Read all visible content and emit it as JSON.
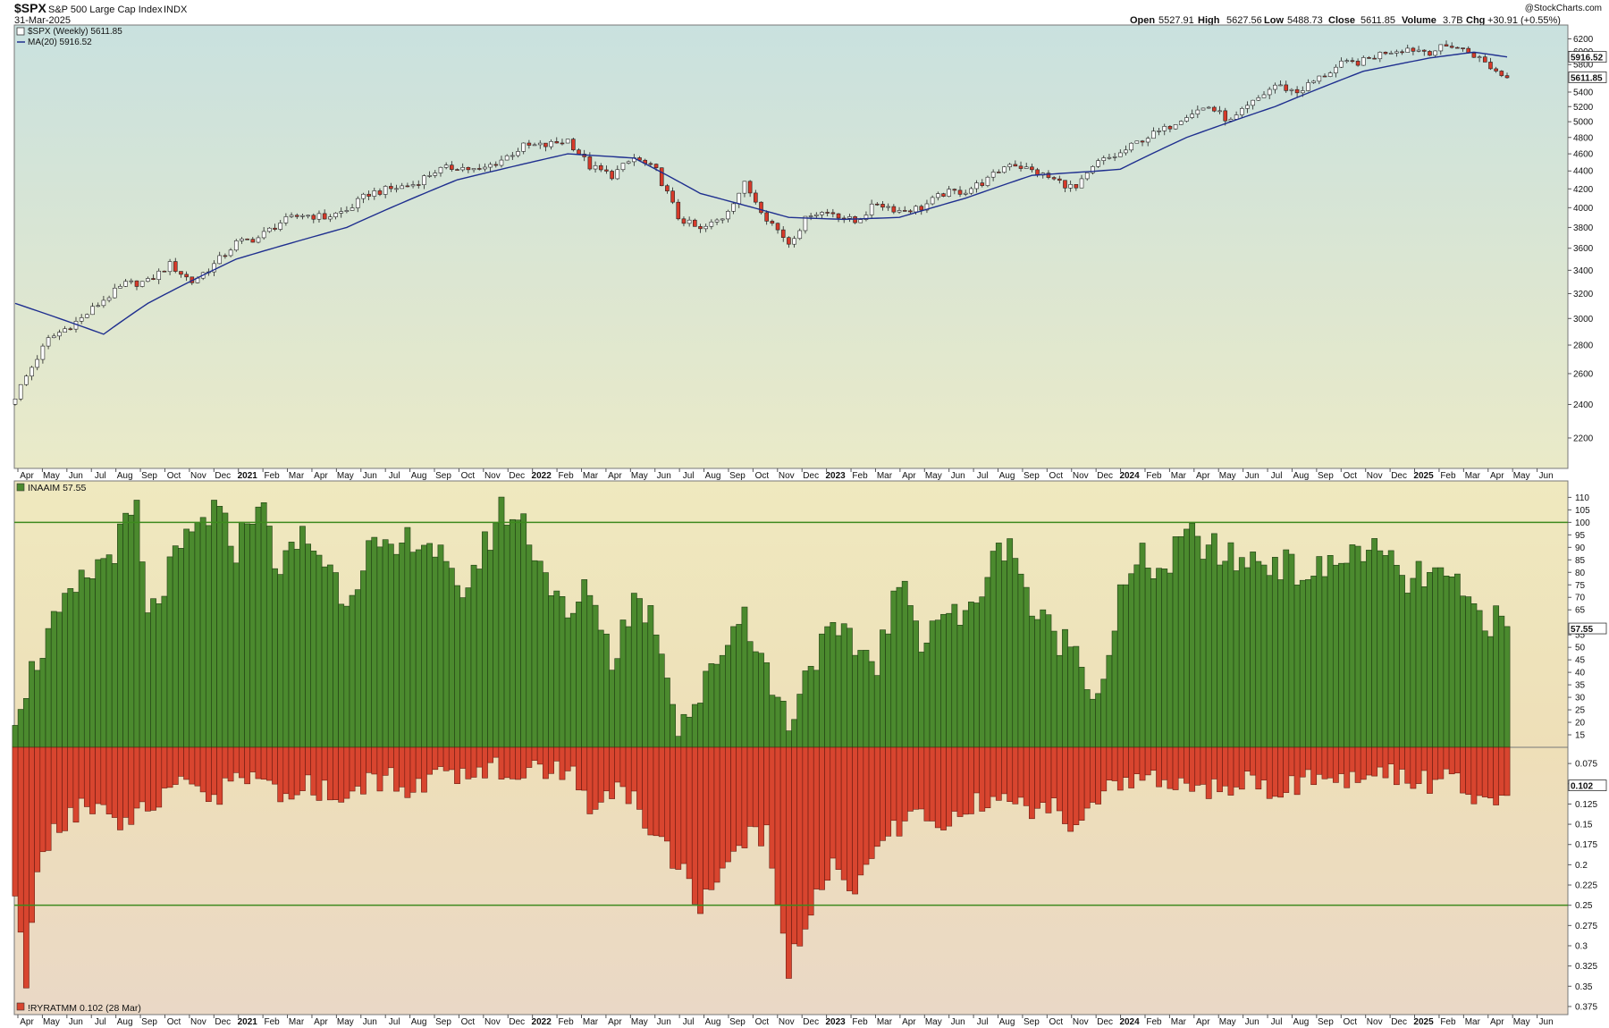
{
  "header": {
    "symbol": "$SPX",
    "name": "S&P 500 Large Cap Index",
    "exchange": "INDX",
    "date": "31-Mar-2025",
    "open_label": "Open",
    "open": "5527.91",
    "high_label": "High",
    "high": "5627.56",
    "low_label": "Low",
    "low": "5488.73",
    "close_label": "Close",
    "close": "5611.85",
    "volume_label": "Volume",
    "volume": "3.7B",
    "chg_label": "Chg",
    "chg": "+30.91 (+0.55%)",
    "watermark": "@StockCharts.com"
  },
  "colors": {
    "up": "#ffffff",
    "down": "#d63a2a",
    "ma": "#1f2f8f",
    "green_bar": "#4b8a2e",
    "red_bar": "#d8452f",
    "ref_line": "#3d8a1e"
  },
  "chart_data": [
    {
      "type": "candlestick",
      "title": "$SPX (Weekly) 5611.85",
      "legend": [
        "$SPX (Weekly) 5611.85",
        "MA(20) 5916.52"
      ],
      "y_ticks": [
        2200,
        2400,
        2600,
        2800,
        3000,
        3200,
        3400,
        3600,
        3800,
        4000,
        4200,
        4400,
        4600,
        4800,
        5000,
        5200,
        5400,
        5800,
        6000,
        6200
      ],
      "ylim": [
        2100,
        6250
      ],
      "last_value_label": "5611.85",
      "ma_value_label": "5916.52",
      "anchors": [
        [
          0,
          2450
        ],
        [
          6,
          2840
        ],
        [
          12,
          3000
        ],
        [
          16,
          3150
        ],
        [
          20,
          3280
        ],
        [
          24,
          3300
        ],
        [
          28,
          3450
        ],
        [
          32,
          3300
        ],
        [
          36,
          3450
        ],
        [
          40,
          3650
        ],
        [
          44,
          3700
        ],
        [
          48,
          3850
        ],
        [
          52,
          3930
        ],
        [
          56,
          3900
        ],
        [
          60,
          3970
        ],
        [
          64,
          4150
        ],
        [
          68,
          4200
        ],
        [
          72,
          4250
        ],
        [
          76,
          4400
        ],
        [
          80,
          4450
        ],
        [
          84,
          4400
        ],
        [
          88,
          4530
        ],
        [
          92,
          4690
        ],
        [
          96,
          4700
        ],
        [
          100,
          4770
        ],
        [
          104,
          4450
        ],
        [
          108,
          4350
        ],
        [
          112,
          4550
        ],
        [
          116,
          4400
        ],
        [
          120,
          3900
        ],
        [
          124,
          3770
        ],
        [
          128,
          3900
        ],
        [
          132,
          4250
        ],
        [
          136,
          3900
        ],
        [
          140,
          3650
        ],
        [
          144,
          3950
        ],
        [
          148,
          3950
        ],
        [
          152,
          3850
        ],
        [
          156,
          4050
        ],
        [
          160,
          3970
        ],
        [
          164,
          4000
        ],
        [
          168,
          4150
        ],
        [
          172,
          4180
        ],
        [
          176,
          4300
        ],
        [
          180,
          4500
        ],
        [
          184,
          4400
        ],
        [
          188,
          4300
        ],
        [
          192,
          4200
        ],
        [
          196,
          4500
        ],
        [
          200,
          4600
        ],
        [
          204,
          4780
        ],
        [
          208,
          4900
        ],
        [
          212,
          5100
        ],
        [
          216,
          5200
        ],
        [
          220,
          5000
        ],
        [
          224,
          5250
        ],
        [
          228,
          5500
        ],
        [
          232,
          5400
        ],
        [
          236,
          5600
        ],
        [
          240,
          5800
        ],
        [
          244,
          5850
        ],
        [
          248,
          6000
        ],
        [
          252,
          6050
        ],
        [
          256,
          6000
        ],
        [
          260,
          6100
        ],
        [
          264,
          5950
        ],
        [
          268,
          5700
        ],
        [
          270,
          5612
        ]
      ],
      "ma20_anchors": [
        [
          0,
          3120
        ],
        [
          16,
          2880
        ],
        [
          24,
          3120
        ],
        [
          40,
          3500
        ],
        [
          60,
          3800
        ],
        [
          80,
          4300
        ],
        [
          100,
          4600
        ],
        [
          112,
          4550
        ],
        [
          124,
          4150
        ],
        [
          140,
          3900
        ],
        [
          150,
          3880
        ],
        [
          160,
          3900
        ],
        [
          172,
          4100
        ],
        [
          184,
          4350
        ],
        [
          196,
          4400
        ],
        [
          200,
          4420
        ],
        [
          212,
          4800
        ],
        [
          228,
          5200
        ],
        [
          244,
          5700
        ],
        [
          256,
          5900
        ],
        [
          264,
          5990
        ],
        [
          270,
          5916
        ]
      ]
    },
    {
      "type": "bar",
      "title": "INAAIM 57.55",
      "legend": [
        "INAAIM 57.55"
      ],
      "y_ticks": [
        15,
        20,
        25,
        30,
        35,
        40,
        45,
        50,
        55,
        65,
        70,
        75,
        80,
        85,
        90,
        95,
        100,
        105,
        110
      ],
      "ylim": [
        10,
        113
      ],
      "reference_line": 100,
      "last_value_label": "57.55",
      "anchors": [
        [
          0,
          25
        ],
        [
          6,
          55
        ],
        [
          12,
          75
        ],
        [
          18,
          90
        ],
        [
          22,
          105
        ],
        [
          24,
          60
        ],
        [
          28,
          80
        ],
        [
          32,
          95
        ],
        [
          36,
          105
        ],
        [
          40,
          90
        ],
        [
          44,
          110
        ],
        [
          48,
          80
        ],
        [
          52,
          95
        ],
        [
          56,
          85
        ],
        [
          60,
          70
        ],
        [
          64,
          90
        ],
        [
          68,
          85
        ],
        [
          72,
          95
        ],
        [
          76,
          90
        ],
        [
          80,
          70
        ],
        [
          84,
          85
        ],
        [
          88,
          105
        ],
        [
          92,
          100
        ],
        [
          96,
          80
        ],
        [
          100,
          60
        ],
        [
          104,
          75
        ],
        [
          108,
          45
        ],
        [
          112,
          70
        ],
        [
          116,
          60
        ],
        [
          120,
          20
        ],
        [
          124,
          30
        ],
        [
          128,
          50
        ],
        [
          132,
          65
        ],
        [
          136,
          40
        ],
        [
          140,
          20
        ],
        [
          144,
          45
        ],
        [
          148,
          55
        ],
        [
          152,
          50
        ],
        [
          156,
          45
        ],
        [
          160,
          75
        ],
        [
          164,
          55
        ],
        [
          168,
          65
        ],
        [
          172,
          60
        ],
        [
          176,
          80
        ],
        [
          180,
          95
        ],
        [
          184,
          65
        ],
        [
          188,
          55
        ],
        [
          192,
          50
        ],
        [
          196,
          30
        ],
        [
          200,
          70
        ],
        [
          204,
          85
        ],
        [
          208,
          80
        ],
        [
          212,
          95
        ],
        [
          216,
          90
        ],
        [
          220,
          85
        ],
        [
          224,
          85
        ],
        [
          228,
          85
        ],
        [
          232,
          80
        ],
        [
          236,
          80
        ],
        [
          240,
          85
        ],
        [
          244,
          90
        ],
        [
          248,
          85
        ],
        [
          252,
          75
        ],
        [
          256,
          80
        ],
        [
          260,
          75
        ],
        [
          264,
          65
        ],
        [
          268,
          60
        ],
        [
          270,
          57.55
        ]
      ],
      "x_tick_labels": [
        "Apr",
        "May",
        "Jun",
        "Jul",
        "Aug",
        "Sep",
        "Oct",
        "Nov",
        "Dec",
        "2021",
        "Feb",
        "Mar",
        "Apr",
        "May",
        "Jun",
        "Jul",
        "Aug",
        "Sep",
        "Oct",
        "Nov",
        "Dec",
        "2022",
        "Feb",
        "Mar",
        "Apr",
        "May",
        "Jun",
        "Jul",
        "Aug",
        "Sep",
        "Oct",
        "Nov",
        "Dec",
        "2023",
        "Feb",
        "Mar",
        "Apr",
        "May",
        "Jun",
        "Jul",
        "Aug",
        "Sep",
        "Oct",
        "Nov",
        "Dec",
        "2024",
        "Feb",
        "Mar",
        "Apr",
        "May",
        "Jun",
        "Jul",
        "Aug",
        "Sep",
        "Oct",
        "Nov",
        "Dec",
        "2025",
        "Feb",
        "Mar",
        "Apr",
        "May",
        "Jun"
      ]
    },
    {
      "type": "bar",
      "title": "!RYRATMM 0.102 (28 Mar)",
      "legend": [
        "!RYRATMM 0.102 (28 Mar)"
      ],
      "y_ticks": [
        0.075,
        0.1,
        0.125,
        0.15,
        0.175,
        0.2,
        0.225,
        0.25,
        0.275,
        0.3,
        0.325,
        0.35,
        0.375
      ],
      "ylim": [
        0.055,
        0.385
      ],
      "inverted": true,
      "reference_line": 0.25,
      "last_value_label": "0.102",
      "anchors": [
        [
          0,
          0.25
        ],
        [
          2,
          0.34
        ],
        [
          4,
          0.2
        ],
        [
          8,
          0.15
        ],
        [
          12,
          0.13
        ],
        [
          16,
          0.12
        ],
        [
          20,
          0.15
        ],
        [
          24,
          0.13
        ],
        [
          28,
          0.11
        ],
        [
          32,
          0.1
        ],
        [
          36,
          0.12
        ],
        [
          40,
          0.09
        ],
        [
          44,
          0.1
        ],
        [
          48,
          0.12
        ],
        [
          52,
          0.1
        ],
        [
          56,
          0.11
        ],
        [
          60,
          0.12
        ],
        [
          64,
          0.1
        ],
        [
          68,
          0.09
        ],
        [
          72,
          0.11
        ],
        [
          76,
          0.09
        ],
        [
          80,
          0.1
        ],
        [
          84,
          0.08
        ],
        [
          88,
          0.08
        ],
        [
          92,
          0.08
        ],
        [
          96,
          0.09
        ],
        [
          100,
          0.08
        ],
        [
          104,
          0.13
        ],
        [
          108,
          0.11
        ],
        [
          112,
          0.12
        ],
        [
          116,
          0.16
        ],
        [
          120,
          0.2
        ],
        [
          124,
          0.25
        ],
        [
          128,
          0.2
        ],
        [
          132,
          0.17
        ],
        [
          136,
          0.16
        ],
        [
          140,
          0.33
        ],
        [
          144,
          0.25
        ],
        [
          148,
          0.2
        ],
        [
          152,
          0.23
        ],
        [
          156,
          0.17
        ],
        [
          160,
          0.15
        ],
        [
          164,
          0.14
        ],
        [
          168,
          0.15
        ],
        [
          172,
          0.13
        ],
        [
          176,
          0.12
        ],
        [
          180,
          0.11
        ],
        [
          184,
          0.14
        ],
        [
          188,
          0.13
        ],
        [
          192,
          0.15
        ],
        [
          196,
          0.12
        ],
        [
          200,
          0.1
        ],
        [
          204,
          0.09
        ],
        [
          208,
          0.1
        ],
        [
          212,
          0.1
        ],
        [
          216,
          0.11
        ],
        [
          220,
          0.1
        ],
        [
          224,
          0.09
        ],
        [
          228,
          0.12
        ],
        [
          232,
          0.1
        ],
        [
          236,
          0.09
        ],
        [
          240,
          0.1
        ],
        [
          244,
          0.09
        ],
        [
          248,
          0.085
        ],
        [
          252,
          0.09
        ],
        [
          256,
          0.1
        ],
        [
          260,
          0.09
        ],
        [
          264,
          0.11
        ],
        [
          268,
          0.12
        ],
        [
          270,
          0.102
        ]
      ],
      "x_tick_labels": [
        "Apr",
        "May",
        "Jun",
        "Jul",
        "Aug",
        "Sep",
        "Oct",
        "Nov",
        "Dec",
        "2021",
        "Feb",
        "Mar",
        "Apr",
        "May",
        "Jun",
        "Jul",
        "Aug",
        "Sep",
        "Oct",
        "Nov",
        "Dec",
        "2022",
        "Feb",
        "Mar",
        "Apr",
        "May",
        "Jun",
        "Jul",
        "Aug",
        "Sep",
        "Oct",
        "Nov",
        "Dec",
        "2023",
        "Feb",
        "Mar",
        "Apr",
        "May",
        "Jun",
        "Jul",
        "Aug",
        "Sep",
        "Oct",
        "Nov",
        "Dec",
        "2024",
        "Feb",
        "Mar",
        "Apr",
        "May",
        "Jun",
        "Jul",
        "Aug",
        "Sep",
        "Oct",
        "Nov",
        "Dec",
        "2025",
        "Feb",
        "Mar",
        "Apr",
        "May",
        "Jun"
      ]
    }
  ]
}
